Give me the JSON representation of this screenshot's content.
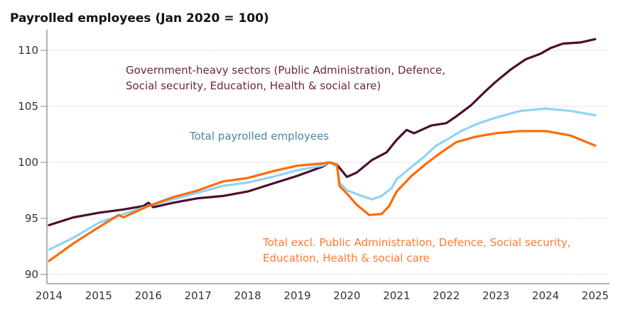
{
  "chart_data": {
    "type": "line",
    "title": "Payrolled employees (Jan 2020 = 100)",
    "xlabel": "",
    "ylabel": "",
    "xlim": [
      2014,
      2025.2
    ],
    "ylim": [
      89.5,
      112
    ],
    "x_ticks": [
      2014,
      2015,
      2016,
      2017,
      2018,
      2019,
      2020,
      2021,
      2022,
      2023,
      2024,
      2025
    ],
    "x_tick_labels": [
      "2014",
      "2015",
      "2016",
      "2017",
      "2018",
      "2019",
      "2020",
      "2021",
      "2022",
      "2023",
      "2024",
      "2025"
    ],
    "y_ticks": [
      90,
      95,
      100,
      105,
      110
    ],
    "y_tick_labels": [
      "90",
      "95",
      "100",
      "105",
      "110"
    ],
    "grid": "horizontal dotted",
    "legend": "none (inline annotations)",
    "annotations": [
      {
        "series": "government",
        "lines": [
          "Government-heavy sectors (Public Administration, Defence,",
          "Social security, Education, Health & social care)"
        ]
      },
      {
        "series": "total",
        "lines": [
          "Total payrolled employees"
        ]
      },
      {
        "series": "excl",
        "lines": [
          "Total excl. Public Administration, Defence, Social security,",
          "Education, Health & social care"
        ]
      }
    ],
    "series": [
      {
        "id": "government",
        "color": "#4a0f2e",
        "points": [
          [
            2014.0,
            94.4
          ],
          [
            2014.5,
            95.1
          ],
          [
            2015.0,
            95.5
          ],
          [
            2015.5,
            95.8
          ],
          [
            2015.9,
            96.1
          ],
          [
            2016.0,
            96.4
          ],
          [
            2016.1,
            96.0
          ],
          [
            2016.5,
            96.4
          ],
          [
            2017.0,
            96.8
          ],
          [
            2017.5,
            97.0
          ],
          [
            2018.0,
            97.4
          ],
          [
            2018.5,
            98.1
          ],
          [
            2019.0,
            98.8
          ],
          [
            2019.5,
            99.6
          ],
          [
            2019.65,
            100.0
          ],
          [
            2019.8,
            99.8
          ],
          [
            2020.0,
            98.7
          ],
          [
            2020.2,
            99.1
          ],
          [
            2020.5,
            100.2
          ],
          [
            2020.8,
            100.9
          ],
          [
            2021.0,
            102.0
          ],
          [
            2021.2,
            102.9
          ],
          [
            2021.35,
            102.6
          ],
          [
            2021.7,
            103.3
          ],
          [
            2022.0,
            103.5
          ],
          [
            2022.2,
            104.1
          ],
          [
            2022.5,
            105.1
          ],
          [
            2022.8,
            106.4
          ],
          [
            2023.0,
            107.2
          ],
          [
            2023.3,
            108.3
          ],
          [
            2023.6,
            109.2
          ],
          [
            2023.9,
            109.7
          ],
          [
            2024.1,
            110.2
          ],
          [
            2024.35,
            110.6
          ],
          [
            2024.7,
            110.7
          ],
          [
            2025.0,
            111.0
          ]
        ]
      },
      {
        "id": "total",
        "color": "#8fd3f7",
        "points": [
          [
            2014.0,
            92.2
          ],
          [
            2014.5,
            93.3
          ],
          [
            2015.0,
            94.6
          ],
          [
            2015.5,
            95.4
          ],
          [
            2016.0,
            96.1
          ],
          [
            2016.5,
            96.7
          ],
          [
            2017.0,
            97.3
          ],
          [
            2017.5,
            97.9
          ],
          [
            2018.0,
            98.2
          ],
          [
            2018.5,
            98.7
          ],
          [
            2019.0,
            99.3
          ],
          [
            2019.5,
            99.7
          ],
          [
            2019.65,
            100.0
          ],
          [
            2019.8,
            99.6
          ],
          [
            2019.85,
            98.2
          ],
          [
            2020.0,
            97.5
          ],
          [
            2020.3,
            97.0
          ],
          [
            2020.5,
            96.7
          ],
          [
            2020.7,
            97.0
          ],
          [
            2020.9,
            97.7
          ],
          [
            2021.0,
            98.5
          ],
          [
            2021.3,
            99.6
          ],
          [
            2021.5,
            100.3
          ],
          [
            2021.8,
            101.5
          ],
          [
            2022.0,
            102.0
          ],
          [
            2022.3,
            102.8
          ],
          [
            2022.6,
            103.4
          ],
          [
            2023.0,
            104.0
          ],
          [
            2023.5,
            104.6
          ],
          [
            2024.0,
            104.8
          ],
          [
            2024.5,
            104.6
          ],
          [
            2025.0,
            104.2
          ]
        ]
      },
      {
        "id": "excl",
        "color": "#ff6a00",
        "points": [
          [
            2014.0,
            91.2
          ],
          [
            2014.5,
            92.8
          ],
          [
            2015.0,
            94.2
          ],
          [
            2015.4,
            95.3
          ],
          [
            2015.5,
            95.1
          ],
          [
            2016.0,
            96.1
          ],
          [
            2016.5,
            96.9
          ],
          [
            2017.0,
            97.5
          ],
          [
            2017.5,
            98.3
          ],
          [
            2018.0,
            98.6
          ],
          [
            2018.5,
            99.2
          ],
          [
            2019.0,
            99.7
          ],
          [
            2019.5,
            99.9
          ],
          [
            2019.65,
            100.0
          ],
          [
            2019.8,
            99.8
          ],
          [
            2019.85,
            97.9
          ],
          [
            2020.0,
            97.2
          ],
          [
            2020.2,
            96.2
          ],
          [
            2020.45,
            95.3
          ],
          [
            2020.7,
            95.4
          ],
          [
            2020.85,
            96.1
          ],
          [
            2021.0,
            97.4
          ],
          [
            2021.3,
            98.8
          ],
          [
            2021.6,
            99.9
          ],
          [
            2021.9,
            100.9
          ],
          [
            2022.2,
            101.8
          ],
          [
            2022.6,
            102.3
          ],
          [
            2023.0,
            102.6
          ],
          [
            2023.5,
            102.8
          ],
          [
            2024.0,
            102.8
          ],
          [
            2024.5,
            102.4
          ],
          [
            2025.0,
            101.5
          ]
        ]
      }
    ],
    "annotation_colors": {
      "government": "#6b2447",
      "total": "#4a87a4",
      "excl": "#ff7a30"
    }
  }
}
